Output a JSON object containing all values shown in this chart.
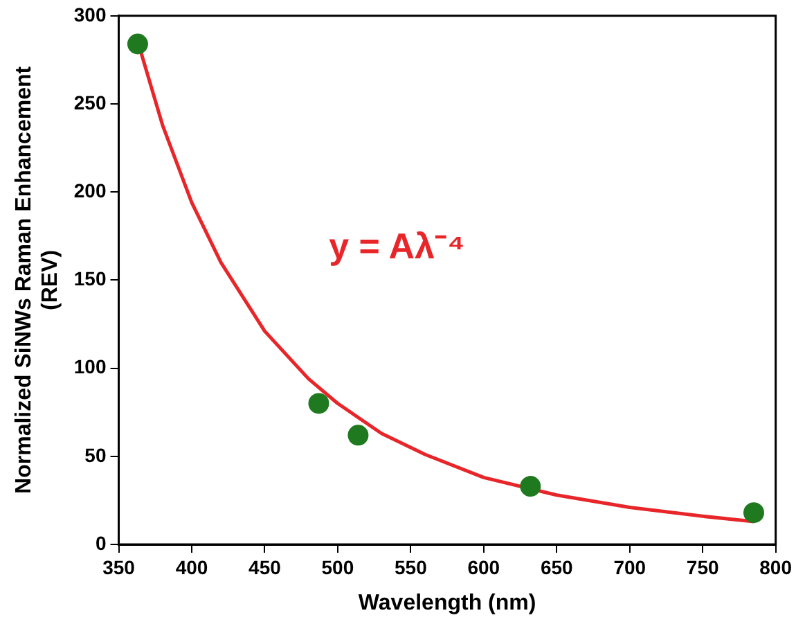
{
  "chart_data": {
    "type": "scatter",
    "xlabel": "Wavelength (nm)",
    "ylabel": "Normalized SiNWs Raman Enhancement\n(REV)",
    "annotations": [
      "y = Aλ⁻⁴"
    ],
    "series": [
      {
        "type": "scatter",
        "color": "#1f7a1f",
        "marker": "circle",
        "x": [
          363,
          487,
          514,
          632,
          785
        ],
        "values": [
          284,
          80,
          62,
          33,
          18
        ]
      },
      {
        "type": "line",
        "color": "#e8262a",
        "marker": "none",
        "line_style": "solid",
        "x": [
          365,
          380,
          400,
          420,
          450,
          480,
          500,
          530,
          560,
          600,
          650,
          700,
          750,
          785
        ],
        "values": [
          280,
          238,
          194,
          160,
          121,
          94,
          80,
          63,
          51,
          38,
          28,
          21,
          16,
          13
        ]
      }
    ],
    "xlim": [
      350,
      800
    ],
    "xticks": [
      350,
      400,
      450,
      500,
      550,
      600,
      650,
      700,
      750,
      800
    ],
    "ylim": [
      0,
      300
    ],
    "yticks": [
      0,
      50,
      100,
      150,
      200,
      250,
      300
    ],
    "grid": false,
    "legend": false
  }
}
